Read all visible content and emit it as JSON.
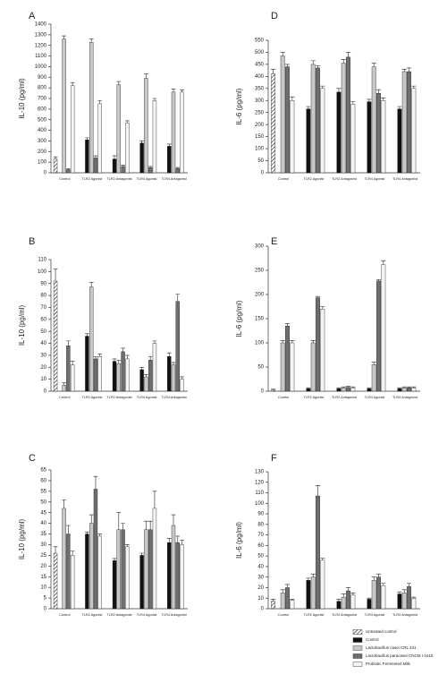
{
  "legend": {
    "entries": [
      {
        "name": "Untreated control",
        "color": "#ffffff",
        "pattern": "hatch"
      },
      {
        "name": "Control",
        "color": "#111111"
      },
      {
        "name": "Lactobacillus casei CRL 431",
        "color": "#c8c8c8"
      },
      {
        "name": "Lactobacillus paracasei CNCM I-1518",
        "color": "#6e6e6e"
      },
      {
        "name": "Probiotic Fermented Milk",
        "color": "#f4f4f4"
      }
    ]
  },
  "chart_data": [
    {
      "type": "bar",
      "panel": "A",
      "y_label": "IL-10 (pg/ml)",
      "categories": [
        "Control",
        "TLR2 Agonist",
        "TLR2 Antagonist",
        "TLR4 Agonist",
        "TLR4 Antagonist"
      ],
      "ylim": [
        0,
        1400
      ],
      "yticks": [
        0,
        100,
        200,
        300,
        400,
        500,
        600,
        700,
        800,
        900,
        1000,
        1100,
        1200,
        1300,
        1400
      ],
      "series": [
        {
          "values": [
            130,
            null,
            null,
            null,
            null
          ],
          "errors": [
            20,
            null,
            null,
            null,
            null
          ]
        },
        {
          "values": [
            null,
            310,
            130,
            280,
            250
          ],
          "errors": [
            null,
            20,
            30,
            20,
            20
          ]
        },
        {
          "values": [
            1260,
            1230,
            830,
            890,
            760
          ],
          "errors": [
            30,
            30,
            30,
            40,
            30
          ]
        },
        {
          "values": [
            30,
            140,
            60,
            50,
            40
          ],
          "errors": [
            10,
            20,
            10,
            10,
            10
          ]
        },
        {
          "values": [
            820,
            650,
            470,
            680,
            760
          ],
          "errors": [
            30,
            30,
            20,
            20,
            20
          ]
        }
      ]
    },
    {
      "type": "bar",
      "panel": "B",
      "y_label": "IL-10 (pg/ml)",
      "categories": [
        "Control",
        "TLR2 Agonist",
        "TLR2 Antagonist",
        "TLR4 Agonist",
        "TLR4 Antagonist"
      ],
      "ylim": [
        0,
        110
      ],
      "yticks": [
        0,
        10,
        20,
        30,
        40,
        50,
        60,
        70,
        80,
        90,
        100,
        110
      ],
      "series": [
        {
          "values": [
            92,
            null,
            null,
            null,
            null
          ],
          "errors": [
            10,
            null,
            null,
            null,
            null
          ]
        },
        {
          "values": [
            null,
            46,
            25,
            18,
            29
          ],
          "errors": [
            null,
            2,
            2,
            2,
            3
          ]
        },
        {
          "values": [
            5,
            87,
            23,
            12,
            22
          ],
          "errors": [
            2,
            4,
            3,
            2,
            2
          ]
        },
        {
          "values": [
            38,
            27,
            33,
            26,
            75
          ],
          "errors": [
            4,
            2,
            3,
            3,
            6
          ]
        },
        {
          "values": [
            22,
            29,
            27,
            40,
            10
          ],
          "errors": [
            3,
            2,
            3,
            2,
            2
          ]
        }
      ]
    },
    {
      "type": "bar",
      "panel": "C",
      "y_label": "IL-10 (pg/ml)",
      "categories": [
        "Control",
        "TLR2 Agonist",
        "TLR2 Antagonist",
        "TLR4 Agonist",
        "TLR4 Antagonist"
      ],
      "ylim": [
        0,
        65
      ],
      "yticks": [
        0,
        5,
        10,
        15,
        20,
        25,
        30,
        35,
        40,
        45,
        50,
        55,
        60,
        65
      ],
      "series": [
        {
          "values": [
            26,
            null,
            null,
            null,
            null
          ],
          "errors": [
            3,
            null,
            null,
            null,
            null
          ]
        },
        {
          "values": [
            null,
            35,
            22.5,
            25,
            31
          ],
          "errors": [
            null,
            1,
            1,
            1,
            2
          ]
        },
        {
          "values": [
            47,
            40,
            37,
            37,
            39
          ],
          "errors": [
            4,
            4,
            8,
            4,
            5
          ]
        },
        {
          "values": [
            35,
            56,
            37,
            37,
            31
          ],
          "errors": [
            4,
            6,
            3,
            4,
            3
          ]
        },
        {
          "values": [
            25,
            34,
            29,
            47,
            30
          ],
          "errors": [
            2,
            1,
            1,
            8,
            2
          ]
        }
      ]
    },
    {
      "type": "bar",
      "panel": "D",
      "y_label": "IL-6 (pg/ml)",
      "categories": [
        "Control",
        "TLR2 Agonist",
        "TLR2 Antagonist",
        "TLR4 Agonist",
        "TLR4 Antagonist"
      ],
      "ylim": [
        0,
        550
      ],
      "yticks": [
        0,
        50,
        100,
        150,
        200,
        250,
        300,
        350,
        400,
        450,
        500,
        550
      ],
      "series": [
        {
          "values": [
            410,
            null,
            null,
            null,
            null
          ],
          "errors": [
            20,
            null,
            null,
            null,
            null
          ]
        },
        {
          "values": [
            null,
            265,
            335,
            295,
            265
          ],
          "errors": [
            null,
            10,
            15,
            10,
            10
          ]
        },
        {
          "values": [
            485,
            450,
            455,
            440,
            420
          ],
          "errors": [
            15,
            15,
            15,
            15,
            10
          ]
        },
        {
          "values": [
            440,
            435,
            480,
            330,
            420
          ],
          "errors": [
            10,
            10,
            20,
            15,
            15
          ]
        },
        {
          "values": [
            300,
            350,
            285,
            300,
            350
          ],
          "errors": [
            15,
            10,
            10,
            10,
            10
          ]
        }
      ]
    },
    {
      "type": "bar",
      "panel": "E",
      "y_label": "IL-6 (pg/ml)",
      "categories": [
        "Control",
        "TLR2 Agonist",
        "TLR2 Antagonist",
        "TLR4 Agonist",
        "TLR4 Antagonist"
      ],
      "ylim": [
        0,
        300
      ],
      "yticks": [
        0,
        50,
        100,
        150,
        200,
        250,
        300
      ],
      "series": [
        {
          "values": [
            2,
            null,
            null,
            null,
            null
          ],
          "errors": [
            2,
            null,
            null,
            null,
            null
          ]
        },
        {
          "values": [
            null,
            5,
            5,
            5,
            5
          ],
          "errors": [
            null,
            2,
            2,
            2,
            2
          ]
        },
        {
          "values": [
            100,
            100,
            7,
            55,
            7
          ],
          "errors": [
            5,
            5,
            2,
            5,
            2
          ]
        },
        {
          "values": [
            135,
            193,
            8,
            228,
            7
          ],
          "errors": [
            5,
            3,
            2,
            3,
            2
          ]
        },
        {
          "values": [
            100,
            170,
            7,
            262,
            7
          ],
          "errors": [
            5,
            5,
            2,
            8,
            2
          ]
        }
      ]
    },
    {
      "type": "bar",
      "panel": "F",
      "y_label": "IL-6 (pg/ml)",
      "categories": [
        "Control",
        "TLR2 Agonist",
        "TLR2 Antagonist",
        "TLR4 Agonist",
        "TLR4 Antagonist"
      ],
      "ylim": [
        0,
        130
      ],
      "yticks": [
        0,
        10,
        20,
        30,
        40,
        50,
        60,
        70,
        80,
        90,
        100,
        110,
        120,
        130
      ],
      "series": [
        {
          "values": [
            7,
            null,
            null,
            null,
            null
          ],
          "errors": [
            2,
            null,
            null,
            null,
            null
          ]
        },
        {
          "values": [
            null,
            27,
            7,
            9,
            14
          ],
          "errors": [
            null,
            2,
            2,
            1,
            2
          ]
        },
        {
          "values": [
            15,
            30,
            11,
            27,
            15
          ],
          "errors": [
            3,
            3,
            3,
            3,
            3
          ]
        },
        {
          "values": [
            20,
            107,
            17,
            30,
            21
          ],
          "errors": [
            3,
            10,
            3,
            3,
            3
          ]
        },
        {
          "values": [
            8,
            46,
            13,
            22,
            10
          ],
          "errors": [
            1,
            2,
            2,
            2,
            1
          ]
        }
      ]
    }
  ]
}
